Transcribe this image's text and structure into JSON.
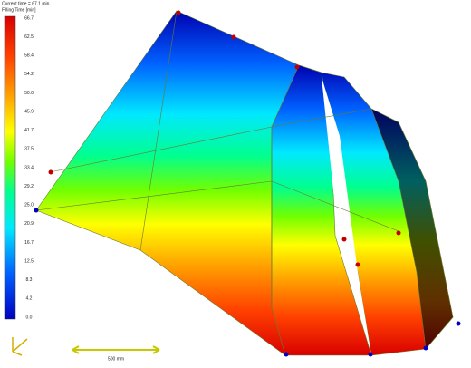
{
  "header": {
    "time": "Current time = 67.1 min",
    "quantity": "Filling Time [min]"
  },
  "legend": {
    "ticks": [
      "66.7",
      "62.5",
      "58.4",
      "54.2",
      "50.0",
      "45.9",
      "41.7",
      "37.5",
      "33.4",
      "29.2",
      "25.0",
      "20.9",
      "16.7",
      "12.5",
      "8.3",
      "4.2",
      "0.0"
    ]
  },
  "scale_bar": {
    "label": "500 mm"
  }
}
